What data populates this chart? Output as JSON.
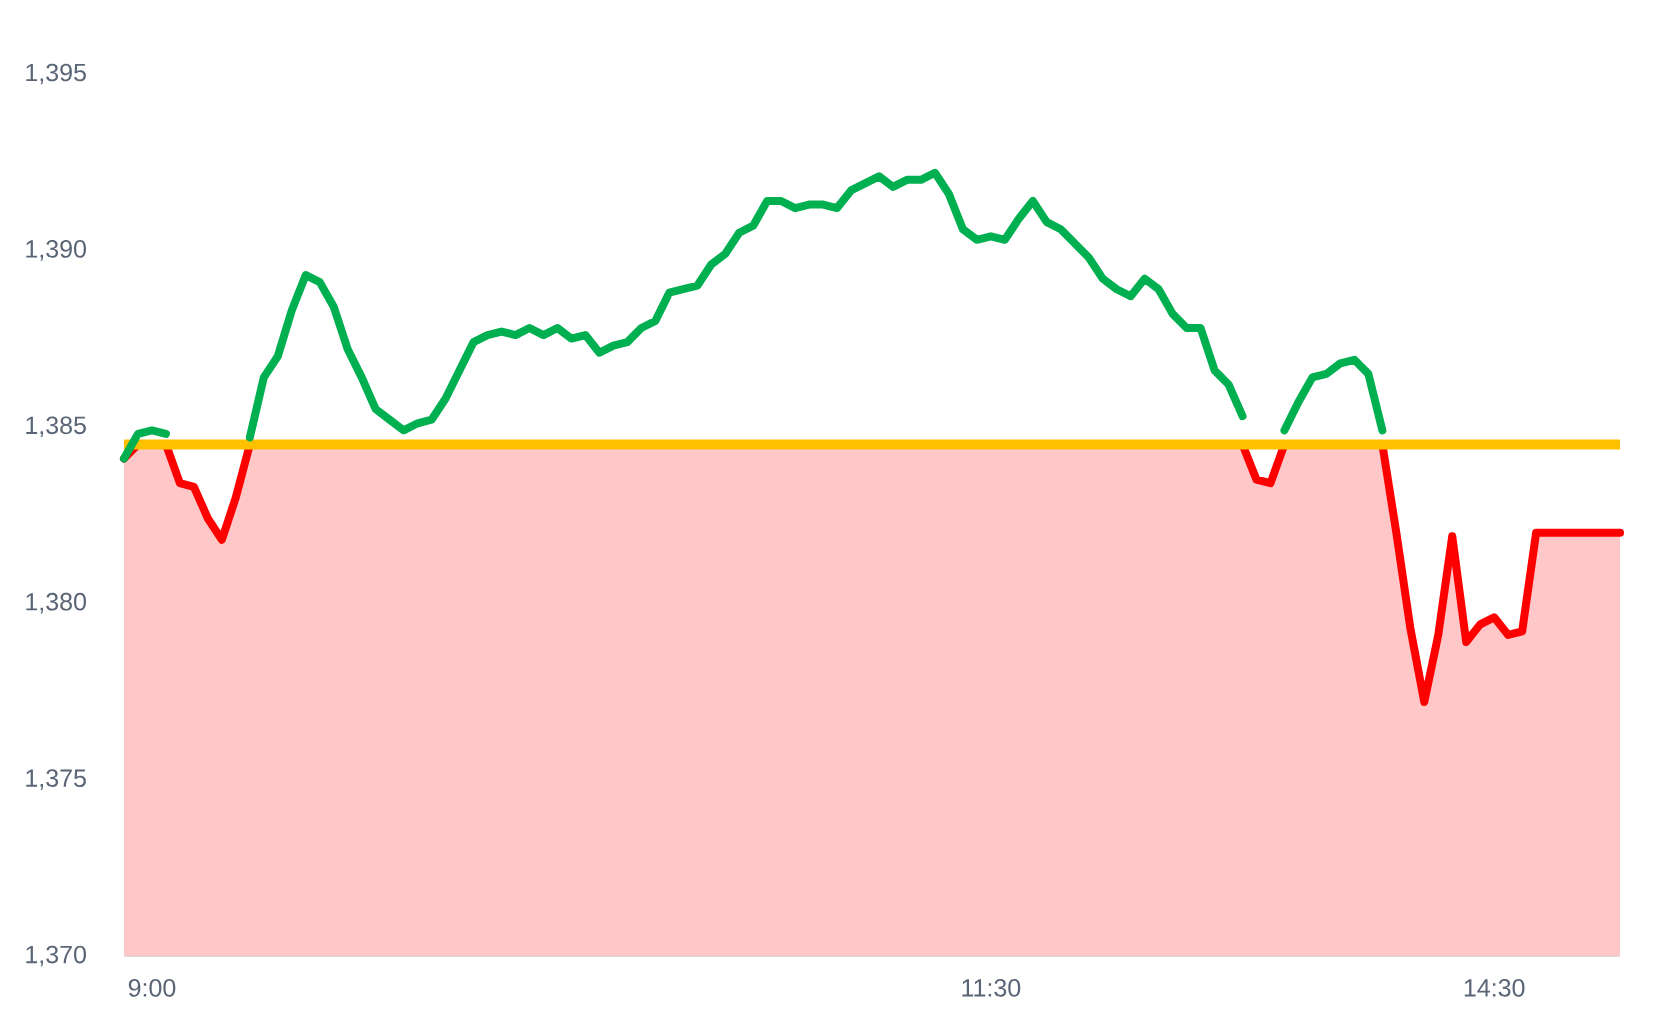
{
  "chart_data": {
    "type": "line",
    "categories": [
      null,
      null,
      "9:00",
      null,
      null,
      null,
      null,
      null,
      null,
      null,
      null,
      null,
      null,
      null,
      null,
      null,
      null,
      null,
      null,
      null,
      null,
      null,
      null,
      null,
      null,
      null,
      null,
      null,
      null,
      null,
      null,
      null,
      null,
      null,
      null,
      null,
      null,
      null,
      null,
      null,
      null,
      null,
      null,
      null,
      null,
      null,
      null,
      null,
      null,
      null,
      null,
      null,
      null,
      null,
      null,
      null,
      null,
      null,
      null,
      null,
      null,
      null,
      "11:30",
      null,
      null,
      null,
      null,
      null,
      null,
      null,
      null,
      null,
      null,
      null,
      null,
      null,
      null,
      null,
      null,
      null,
      null,
      null,
      null,
      null,
      null,
      null,
      null,
      null,
      null,
      null,
      null,
      null,
      null,
      null,
      null,
      null,
      null,
      null,
      "14:30",
      null,
      null,
      null,
      null,
      null,
      null,
      null,
      null,
      null
    ],
    "series": [
      {
        "type": "area",
        "color": "#ff0000",
        "values": [
          1384.1,
          1384.5,
          1384.5,
          1384.5,
          1383.4,
          1383.3,
          1382.4,
          1381.8,
          1383.0,
          1384.5,
          1384.5,
          1384.5,
          1384.5,
          1384.5,
          1384.5,
          1384.5,
          1384.5,
          1384.5,
          1384.5,
          1384.5,
          1384.5,
          1384.5,
          1384.5,
          1384.5,
          1384.5,
          1384.5,
          1384.5,
          1384.5,
          1384.5,
          1384.5,
          1384.5,
          1384.5,
          1384.5,
          1384.5,
          1384.5,
          1384.5,
          1384.5,
          1384.5,
          1384.5,
          1384.5,
          1384.5,
          1384.5,
          1384.5,
          1384.5,
          1384.5,
          1384.5,
          1384.5,
          1384.5,
          1384.5,
          1384.5,
          1384.5,
          1384.5,
          1384.5,
          1384.5,
          1384.5,
          1384.5,
          1384.5,
          1384.5,
          1384.5,
          1384.5,
          1384.5,
          1384.5,
          1384.5,
          1384.5,
          1384.5,
          1384.5,
          1384.5,
          1384.5,
          1384.5,
          1384.5,
          1384.5,
          1384.5,
          1384.5,
          1384.5,
          1384.5,
          1384.5,
          1384.5,
          1384.5,
          1384.5,
          1384.5,
          1384.5,
          1383.5,
          1383.4,
          1384.5,
          1384.5,
          1384.5,
          1384.5,
          1384.5,
          1384.5,
          1384.5,
          1384.5,
          1382.0,
          1379.3,
          1377.2,
          1379.1,
          1381.9,
          1378.9,
          1379.4,
          1379.6,
          1379.1,
          1379.2,
          1382.0,
          1382.0,
          1382.0,
          1382.0,
          1382.0,
          1382.0,
          1382.0
        ]
      },
      {
        "color": "#00b050",
        "values": [
          1384.1,
          1384.8,
          1384.9,
          1384.8,
          null,
          null,
          null,
          null,
          null,
          1384.7,
          1386.4,
          1387.0,
          1388.3,
          1389.3,
          1389.1,
          1388.4,
          1387.2,
          1386.4,
          1385.5,
          1385.2,
          1384.9,
          1385.1,
          1385.2,
          1385.8,
          1386.6,
          1387.4,
          1387.6,
          1387.7,
          1387.6,
          1387.8,
          1387.6,
          1387.8,
          1387.5,
          1387.6,
          1387.1,
          1387.3,
          1387.4,
          1387.8,
          1388.0,
          1388.8,
          1388.9,
          1389.0,
          1389.6,
          1389.9,
          1390.5,
          1390.7,
          1391.4,
          1391.4,
          1391.2,
          1391.3,
          1391.3,
          1391.2,
          1391.7,
          1391.9,
          1392.1,
          1391.8,
          1392.0,
          1392.0,
          1392.2,
          1391.6,
          1390.6,
          1390.3,
          1390.4,
          1390.3,
          1390.9,
          1391.4,
          1390.8,
          1390.6,
          1390.2,
          1389.8,
          1389.2,
          1388.9,
          1388.7,
          1389.2,
          1388.9,
          1388.2,
          1387.8,
          1387.8,
          1386.6,
          1386.2,
          1385.3,
          null,
          null,
          1384.9,
          1385.7,
          1386.4,
          1386.5,
          1386.8,
          1386.9,
          1386.5,
          1384.9,
          null,
          null,
          null,
          null,
          null,
          null,
          null,
          null,
          null,
          null,
          null,
          null,
          null,
          null,
          null,
          null,
          null
        ]
      }
    ],
    "ylim": [
      1370,
      1395
    ],
    "yticks": [
      {
        "value": 1370,
        "label": "1,370"
      },
      {
        "value": 1375,
        "label": "1,375"
      },
      {
        "value": 1380,
        "label": "1,380"
      },
      {
        "value": 1385,
        "label": "1,385"
      },
      {
        "value": 1390,
        "label": "1,390"
      },
      {
        "value": 1395,
        "label": "1,395"
      }
    ],
    "ref_lines": [
      {
        "axis": "y",
        "value": 1384.5,
        "color": "#ffc000"
      }
    ],
    "line_style": "solid"
  }
}
